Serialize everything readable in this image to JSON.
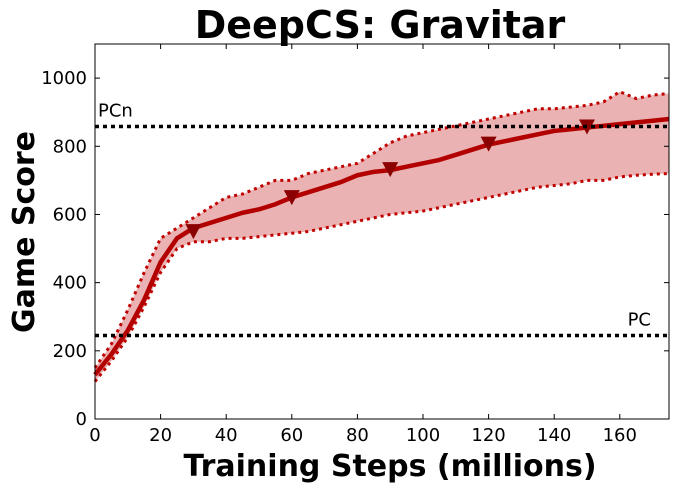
{
  "chart_data": {
    "type": "line",
    "title": "DeepCS: Gravitar",
    "xlabel": "Training Steps (millions)",
    "ylabel": "Game Score",
    "xlim": [
      0,
      175
    ],
    "ylim": [
      0,
      1100
    ],
    "xticks": [
      "0",
      "20",
      "40",
      "60",
      "80",
      "100",
      "120",
      "140",
      "160"
    ],
    "yticks": [
      "0",
      "200",
      "400",
      "600",
      "800",
      "1000"
    ],
    "grid": false,
    "reference_lines": [
      {
        "label": "PCn",
        "y": 858
      },
      {
        "label": "PC",
        "y": 245
      }
    ],
    "series": [
      {
        "role": "mean",
        "x": [
          0,
          5,
          10,
          15,
          20,
          25,
          30,
          35,
          40,
          45,
          50,
          55,
          60,
          65,
          70,
          75,
          80,
          85,
          90,
          95,
          100,
          105,
          110,
          115,
          120,
          125,
          130,
          135,
          140,
          145,
          150,
          155,
          160,
          165,
          170,
          175
        ],
        "y": [
          130,
          190,
          260,
          350,
          460,
          530,
          560,
          575,
          590,
          605,
          615,
          630,
          650,
          665,
          680,
          695,
          715,
          725,
          730,
          740,
          750,
          760,
          775,
          790,
          805,
          815,
          825,
          835,
          845,
          850,
          855,
          860,
          865,
          870,
          875,
          880
        ]
      },
      {
        "role": "upper-run",
        "x": [
          0,
          5,
          10,
          15,
          20,
          25,
          30,
          35,
          40,
          45,
          50,
          55,
          60,
          65,
          70,
          75,
          80,
          85,
          90,
          95,
          100,
          105,
          110,
          115,
          120,
          125,
          130,
          135,
          140,
          145,
          150,
          155,
          160,
          165,
          170,
          175
        ],
        "y": [
          150,
          220,
          320,
          430,
          530,
          560,
          590,
          620,
          650,
          660,
          680,
          700,
          700,
          720,
          730,
          740,
          750,
          780,
          810,
          830,
          840,
          850,
          860,
          870,
          880,
          890,
          900,
          910,
          910,
          915,
          920,
          930,
          960,
          940,
          950,
          955
        ]
      },
      {
        "role": "lower-run",
        "x": [
          0,
          5,
          10,
          15,
          20,
          25,
          30,
          35,
          40,
          45,
          50,
          55,
          60,
          65,
          70,
          75,
          80,
          85,
          90,
          95,
          100,
          105,
          110,
          115,
          120,
          125,
          130,
          135,
          140,
          145,
          150,
          155,
          160,
          165,
          170,
          175
        ],
        "y": [
          110,
          170,
          240,
          330,
          430,
          500,
          520,
          520,
          530,
          530,
          535,
          540,
          545,
          550,
          560,
          570,
          580,
          590,
          600,
          605,
          610,
          620,
          630,
          640,
          650,
          660,
          670,
          680,
          685,
          690,
          700,
          700,
          710,
          715,
          718,
          720
        ]
      }
    ],
    "markers": [
      {
        "x": 30,
        "y": 548
      },
      {
        "x": 60,
        "y": 648
      },
      {
        "x": 90,
        "y": 730
      },
      {
        "x": 120,
        "y": 805
      },
      {
        "x": 150,
        "y": 855
      }
    ],
    "colors": {
      "mean_line": "#b30000",
      "run_lines": "#c00000",
      "band_fill": "#e6a5a5",
      "marker": "#8b0000",
      "reference_line": "#000000"
    }
  }
}
